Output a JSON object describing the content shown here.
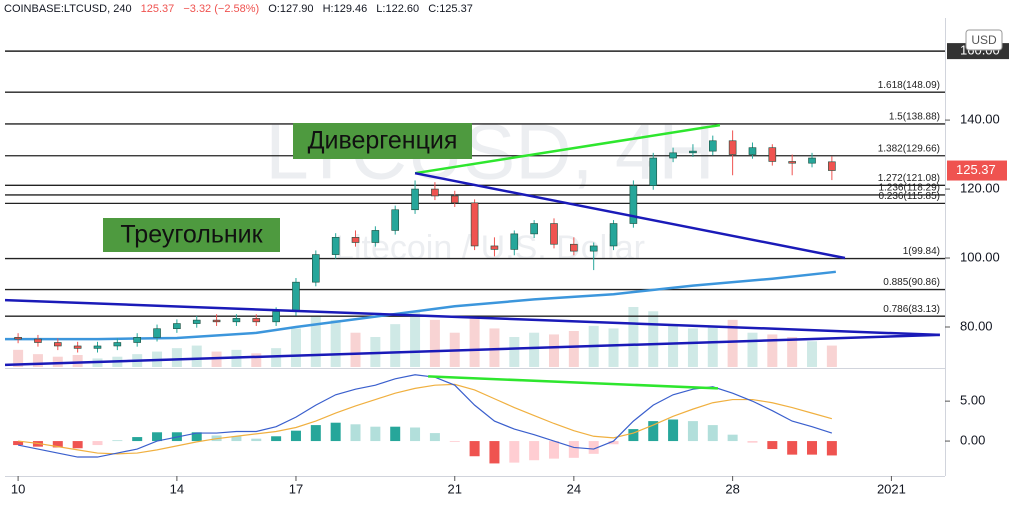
{
  "header": [
    "COINBASE:LTCUSD, 240",
    "125.37",
    "−3.32 (−2.58%)",
    "O:127.90",
    "H:129.46",
    "L:122.60",
    "C:125.37"
  ],
  "chart_data": {
    "type": "candlestick",
    "watermark": [
      "LTCUSD, 4H",
      "Litecoin / U.S. Dollar"
    ],
    "currency": "USD",
    "annotations": [
      "Дивергенция",
      "Треугольник"
    ],
    "annotation_color": "#4e9a3f",
    "x": [
      10,
      10.5,
      11,
      11.5,
      12,
      12.5,
      13,
      13.5,
      14,
      14.5,
      15,
      15.5,
      16,
      16.5,
      17,
      17.5,
      18,
      18.5,
      19,
      19.5,
      20,
      20.5,
      21,
      21.5,
      22,
      22.5,
      23,
      23.5,
      24,
      24.5,
      25,
      25.5,
      26,
      26.5,
      27,
      27.5,
      28,
      28.5,
      29,
      29.5,
      30,
      30.5
    ],
    "open": [
      77,
      76.5,
      75.5,
      74.5,
      73.8,
      74.5,
      75.5,
      77,
      79.5,
      81,
      82,
      81.5,
      82.5,
      81.5,
      84.5,
      93,
      101,
      106,
      104.5,
      108,
      114,
      120,
      118,
      116,
      103.5,
      102.5,
      107,
      110,
      104,
      102,
      103.5,
      110,
      121,
      129,
      130.5,
      131,
      134,
      130,
      132,
      128,
      127.5,
      127.9
    ],
    "high": [
      78.2,
      77.7,
      76.7,
      75.7,
      75.7,
      76.7,
      78.2,
      80.7,
      82.2,
      83.2,
      83.7,
      83.7,
      83.7,
      85.7,
      94.2,
      102.2,
      107.2,
      108,
      109.2,
      115.2,
      122.5,
      122,
      119.5,
      117,
      106,
      108,
      111,
      111.5,
      106,
      104.5,
      111,
      122.5,
      130.5,
      132,
      133,
      135.5,
      137,
      133.5,
      133,
      130,
      130.5,
      129.46
    ],
    "low": [
      75.3,
      74.3,
      73.3,
      72.6,
      72.6,
      73.3,
      74.3,
      75.8,
      78.3,
      79.8,
      80.3,
      80.3,
      80.3,
      80.3,
      83.3,
      91.8,
      99.8,
      103.3,
      103.3,
      106.8,
      112.8,
      116.8,
      114.8,
      102.3,
      100.5,
      100.8,
      105.8,
      102.8,
      100.8,
      96.5,
      102.3,
      108.8,
      119.8,
      127.8,
      129.3,
      129.8,
      124,
      128.8,
      126.8,
      124,
      126.3,
      122.6
    ],
    "close": [
      76.5,
      75.5,
      74.5,
      73.8,
      74.5,
      75.5,
      77,
      79.5,
      81,
      82,
      81.5,
      82.5,
      81.5,
      84.5,
      93,
      101,
      106,
      104.5,
      108,
      114,
      120,
      118,
      116,
      103.5,
      102.5,
      107,
      110,
      104,
      102,
      103.5,
      110,
      121,
      129,
      130.5,
      131,
      134,
      130,
      132,
      128,
      127.5,
      129,
      125.37
    ],
    "up_color": "#26a69a",
    "down_color": "#ef5350",
    "volume": [
      20,
      15,
      12,
      14,
      10,
      12,
      15,
      18,
      22,
      25,
      18,
      20,
      16,
      22,
      45,
      60,
      55,
      40,
      35,
      50,
      65,
      55,
      40,
      60,
      45,
      35,
      40,
      38,
      42,
      48,
      45,
      70,
      65,
      50,
      45,
      48,
      55,
      40,
      38,
      35,
      30,
      25
    ],
    "volume_colors": [
      "#cfe9e6",
      "#f8d3d3"
    ],
    "ylim": [
      68.4,
      169.6
    ],
    "yticks": [
      {
        "value": 80,
        "label": "80.00"
      },
      {
        "value": 100,
        "label": "100.00"
      },
      {
        "value": 120,
        "label": "120.00"
      },
      {
        "value": 140,
        "label": "140.00"
      }
    ],
    "top_level": {
      "value": 160,
      "label": "160.00"
    },
    "last_price": {
      "value": 125.37,
      "label": "125.37"
    },
    "xlim": [
      9.67,
      33.35
    ],
    "xticks": [
      10,
      14,
      17,
      21,
      24,
      28,
      {
        "value": 32,
        "label": "2021"
      }
    ],
    "fib_levels": [
      {
        "value": 148.09,
        "label": "1.618(148.09)"
      },
      {
        "value": 138.88,
        "label": "1.5(138.88)"
      },
      {
        "value": 129.66,
        "label": "1.382(129.66)"
      },
      {
        "value": 121.08,
        "label": "1.272(121.08)"
      },
      {
        "value": 118.29,
        "label": "1.236(118.29)"
      },
      {
        "value": 115.85,
        "label": "0.236(115.85)"
      },
      {
        "value": 99.84,
        "label": "1(99.84)"
      },
      {
        "value": 90.86,
        "label": "0.885(90.86)"
      },
      {
        "value": 83.13,
        "label": "0.786(83.13)"
      }
    ],
    "moving_average": {
      "color": "#3c96dc",
      "x": [
        9.67,
        12,
        14,
        16,
        17,
        19,
        21,
        23,
        25,
        27,
        29,
        30.6
      ],
      "values": [
        76.5,
        76.5,
        76.8,
        78.3,
        80,
        83,
        86,
        88,
        89.5,
        92,
        94,
        96
      ]
    },
    "trendlines": [
      {
        "color": "#2ee62e",
        "x": [
          20,
          27.68
        ],
        "values": [
          124.6,
          138.55
        ]
      },
      {
        "color": "#1a1ab8",
        "x": [
          20,
          30.83
        ],
        "values": [
          124.6,
          100
        ]
      },
      {
        "color": "#1a1ab8",
        "x": [
          9.67,
          33.22
        ],
        "values": [
          87.8,
          77.7
        ]
      },
      {
        "color": "#1a1ab8",
        "x": [
          9.67,
          33.22
        ],
        "values": [
          69,
          77.7
        ]
      }
    ],
    "macd": {
      "ylim": [
        -4.25,
        8.9
      ],
      "yticks": [
        {
          "value": 0,
          "label": "0.00"
        },
        {
          "value": 5,
          "label": "5.00"
        }
      ],
      "macd_line": {
        "color": "#3a5fcd",
        "values": [
          -0.5,
          -1,
          -1.5,
          -2,
          -2,
          -1.5,
          -1,
          0,
          0.5,
          1,
          1,
          1.2,
          1.2,
          1.8,
          3,
          4.5,
          5.8,
          6.5,
          7,
          7.8,
          8.3,
          8,
          7,
          4.5,
          2.5,
          1.5,
          0.8,
          0,
          -0.8,
          -1,
          0,
          2.5,
          4.5,
          5.8,
          6.5,
          6.8,
          6,
          5,
          3.8,
          2.5,
          1.8,
          1.0
        ]
      },
      "signal_line": {
        "color": "#f0b040",
        "values": [
          0,
          -0.3,
          -0.7,
          -1.1,
          -1.5,
          -1.6,
          -1.5,
          -1.1,
          -0.6,
          -0.1,
          0.3,
          0.6,
          0.9,
          1.2,
          1.7,
          2.5,
          3.5,
          4.4,
          5.2,
          6,
          6.6,
          7,
          7.1,
          6.4,
          5.3,
          4.2,
          3.2,
          2.2,
          1.3,
          0.6,
          0.4,
          1,
          2,
          3.1,
          4,
          4.8,
          5.2,
          5.2,
          4.8,
          4.2,
          3.5,
          2.8
        ]
      },
      "histogram": [
        -0.5,
        -0.7,
        -0.8,
        -0.9,
        -0.5,
        0.1,
        0.5,
        1.1,
        1.1,
        1.1,
        0.7,
        0.6,
        0.3,
        0.6,
        1.3,
        2,
        2.3,
        2.1,
        1.8,
        1.8,
        1.7,
        1,
        -0.1,
        -1.9,
        -2.8,
        -2.7,
        -2.4,
        -2.2,
        -2.1,
        -1.6,
        -0.4,
        1.5,
        2.5,
        2.7,
        2.5,
        2,
        0.8,
        -0.2,
        -1,
        -1.7,
        -1.7,
        -1.8
      ],
      "histogram_colors": [
        "#26a69a",
        "#b2dfdb",
        "#ef5350",
        "#ffcdd2"
      ],
      "divergence": {
        "color": "#2ee62e",
        "x": [
          20.33,
          27.63
        ],
        "values": [
          8.1,
          6.6
        ]
      }
    }
  }
}
